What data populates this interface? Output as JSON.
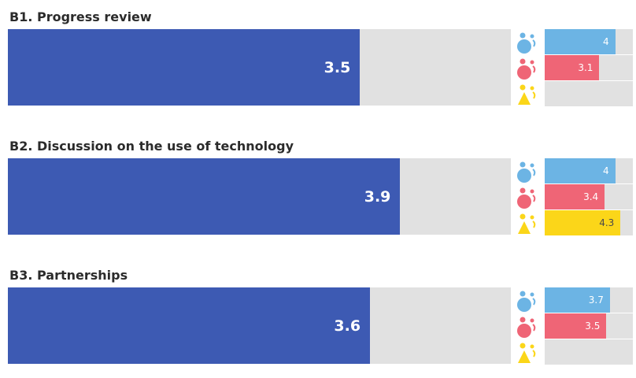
{
  "chart_data": {
    "type": "bar",
    "xlim": [
      0,
      5
    ],
    "grid": false,
    "legend": "none",
    "colors": {
      "main": "#3d5ab3",
      "track": "#e1e1e1",
      "groups": [
        "#6cb4e4",
        "#ef6576",
        "#fbd619"
      ]
    },
    "group_icons": [
      "person-icon-blue",
      "person-icon-red",
      "person-icon-yellow"
    ],
    "items": [
      {
        "title": "B1. Progress review",
        "value": 3.5,
        "value_label": "3.5",
        "sub": [
          {
            "value": 4,
            "label": "4"
          },
          {
            "value": 3.1,
            "label": "3.1"
          },
          {
            "value": null,
            "label": ""
          }
        ]
      },
      {
        "title": "B2. Discussion on the use of technology",
        "value": 3.9,
        "value_label": "3.9",
        "sub": [
          {
            "value": 4,
            "label": "4"
          },
          {
            "value": 3.4,
            "label": "3.4"
          },
          {
            "value": 4.3,
            "label": "4.3"
          }
        ]
      },
      {
        "title": "B3. Partnerships",
        "value": 3.6,
        "value_label": "3.6",
        "sub": [
          {
            "value": 3.7,
            "label": "3.7"
          },
          {
            "value": 3.5,
            "label": "3.5"
          },
          {
            "value": null,
            "label": ""
          }
        ]
      }
    ]
  }
}
